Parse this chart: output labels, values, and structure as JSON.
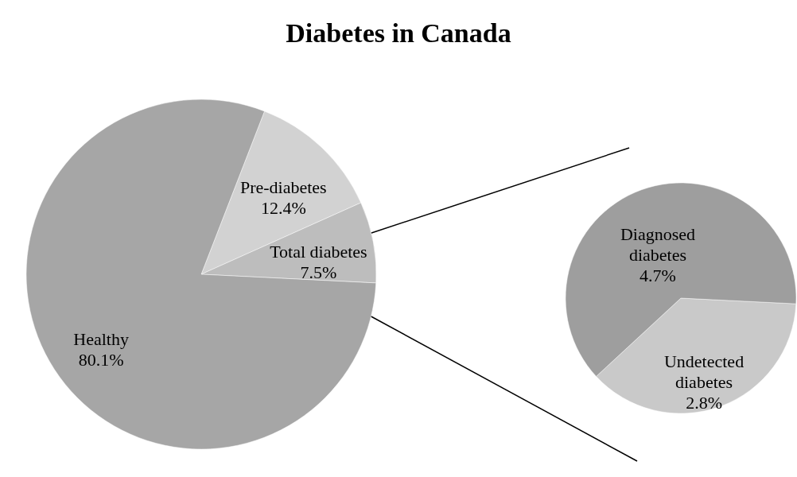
{
  "chart_data": [
    {
      "type": "pie",
      "title": "Diabetes in Canada",
      "categories": [
        "Pre-diabetes",
        "Total diabetes",
        "Healthy"
      ],
      "values": [
        12.4,
        7.5,
        80.1
      ],
      "value_labels": [
        "12.4%",
        "7.5%",
        "80.1%"
      ],
      "colors": [
        "#d2d2d2",
        "#bdbdbd",
        "#a6a6a6"
      ]
    },
    {
      "type": "pie",
      "categories": [
        "Undetected diabetes",
        "Diagnosed diabetes"
      ],
      "values": [
        2.8,
        4.7
      ],
      "value_labels": [
        "2.8%",
        "4.7%"
      ],
      "colors": [
        "#c9c9c9",
        "#9e9e9e"
      ]
    }
  ]
}
